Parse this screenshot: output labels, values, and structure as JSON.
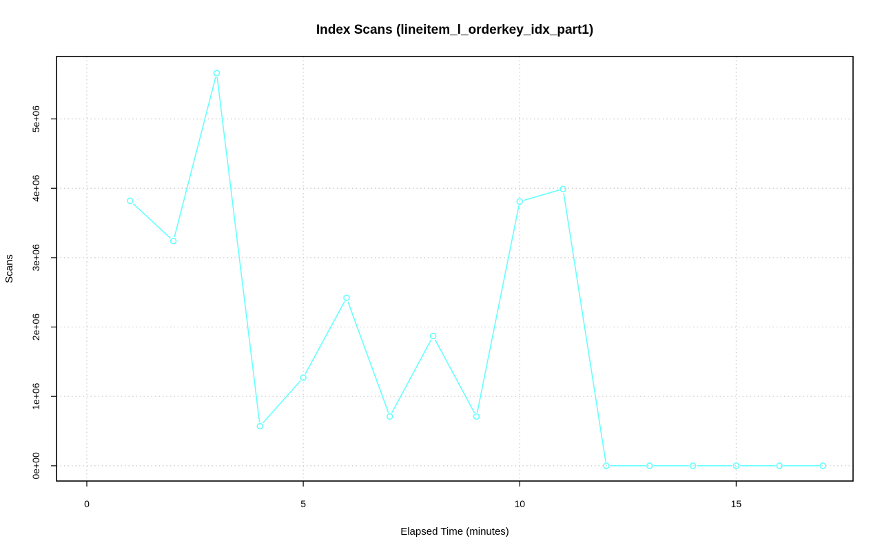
{
  "chart_data": {
    "type": "line",
    "title": "Index Scans (lineitem_l_orderkey_idx_part1)",
    "xlabel": "Elapsed Time (minutes)",
    "ylabel": "Scans",
    "xlim": [
      -0.7,
      17.7
    ],
    "ylim": [
      -220000,
      5900000
    ],
    "x_ticks": [
      0,
      5,
      10,
      15
    ],
    "x_tick_labels": [
      "0",
      "5",
      "10",
      "15"
    ],
    "y_ticks": [
      0,
      1000000,
      2000000,
      3000000,
      4000000,
      5000000
    ],
    "y_tick_labels": [
      "0e+00",
      "1e+06",
      "2e+06",
      "3e+06",
      "4e+06",
      "5e+06"
    ],
    "grid": true,
    "series": [
      {
        "color": "#66ffff",
        "marker": "open-circle",
        "x": [
          1,
          2,
          3,
          4,
          5,
          6,
          7,
          8,
          9,
          10,
          11,
          12,
          13,
          14,
          15,
          16,
          17
        ],
        "values": [
          3820000,
          3240000,
          5660000,
          570000,
          1270000,
          2420000,
          710000,
          1870000,
          710000,
          3810000,
          3990000,
          0,
          0,
          0,
          0,
          0,
          0
        ]
      }
    ]
  }
}
